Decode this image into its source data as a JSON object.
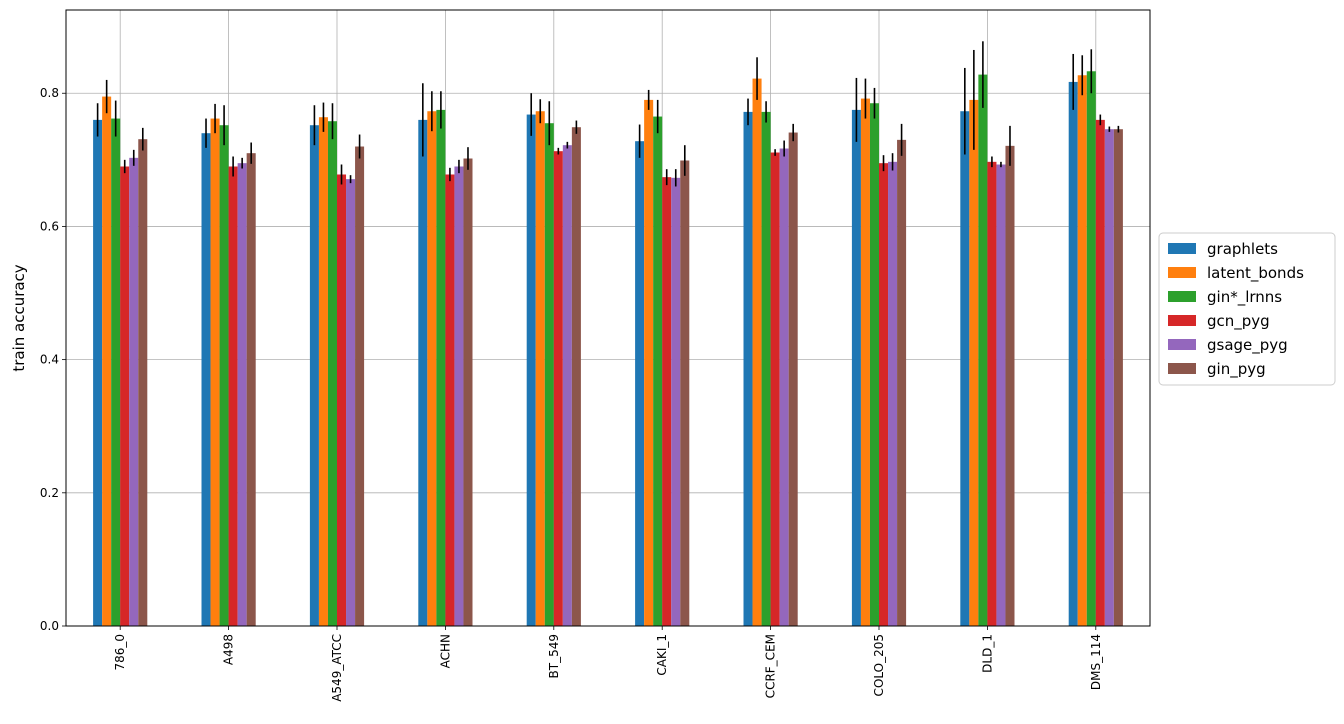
{
  "chart_data": {
    "type": "bar",
    "title": "",
    "xlabel": "",
    "ylabel": "train accuracy",
    "ylim": [
      0,
      0.925
    ],
    "yticks": [
      0.0,
      0.2,
      0.4,
      0.6,
      0.8
    ],
    "ytick_labels": [
      "0.0",
      "0.2",
      "0.4",
      "0.6",
      "0.8"
    ],
    "grid": true,
    "legend_position": "right",
    "categories": [
      "786_0",
      "A498",
      "A549_ATCC",
      "ACHN",
      "BT_549",
      "CAKI_1",
      "CCRF_CEM",
      "COLO_205",
      "DLD_1",
      "DMS_114"
    ],
    "series": [
      {
        "name": "graphlets",
        "color": "#1f77b4",
        "values": [
          0.76,
          0.74,
          0.752,
          0.76,
          0.768,
          0.728,
          0.772,
          0.775,
          0.773,
          0.817
        ],
        "errors": [
          0.025,
          0.022,
          0.03,
          0.055,
          0.032,
          0.025,
          0.02,
          0.048,
          0.065,
          0.042
        ]
      },
      {
        "name": "latent_bonds",
        "color": "#ff7f0e",
        "values": [
          0.795,
          0.762,
          0.764,
          0.773,
          0.773,
          0.79,
          0.822,
          0.792,
          0.79,
          0.827
        ],
        "errors": [
          0.025,
          0.022,
          0.022,
          0.03,
          0.018,
          0.015,
          0.032,
          0.03,
          0.075,
          0.03
        ]
      },
      {
        "name": "gin*_lrnns",
        "color": "#2ca02c",
        "values": [
          0.762,
          0.752,
          0.758,
          0.775,
          0.755,
          0.765,
          0.772,
          0.785,
          0.828,
          0.833
        ],
        "errors": [
          0.027,
          0.03,
          0.027,
          0.028,
          0.033,
          0.025,
          0.016,
          0.023,
          0.05,
          0.033
        ]
      },
      {
        "name": "gcn_pyg",
        "color": "#d62728",
        "values": [
          0.69,
          0.69,
          0.678,
          0.678,
          0.713,
          0.674,
          0.711,
          0.695,
          0.697,
          0.76
        ],
        "errors": [
          0.01,
          0.015,
          0.015,
          0.01,
          0.005,
          0.012,
          0.005,
          0.012,
          0.008,
          0.008
        ]
      },
      {
        "name": "gsage_pyg",
        "color": "#9467bd",
        "values": [
          0.703,
          0.695,
          0.671,
          0.69,
          0.722,
          0.673,
          0.717,
          0.697,
          0.693,
          0.746
        ],
        "errors": [
          0.012,
          0.008,
          0.006,
          0.01,
          0.005,
          0.013,
          0.012,
          0.013,
          0.004,
          0.004
        ]
      },
      {
        "name": "gin_pyg",
        "color": "#8c564b",
        "values": [
          0.731,
          0.71,
          0.72,
          0.702,
          0.749,
          0.699,
          0.741,
          0.73,
          0.721,
          0.746
        ],
        "errors": [
          0.017,
          0.016,
          0.018,
          0.017,
          0.01,
          0.023,
          0.013,
          0.024,
          0.03,
          0.005
        ]
      }
    ]
  }
}
